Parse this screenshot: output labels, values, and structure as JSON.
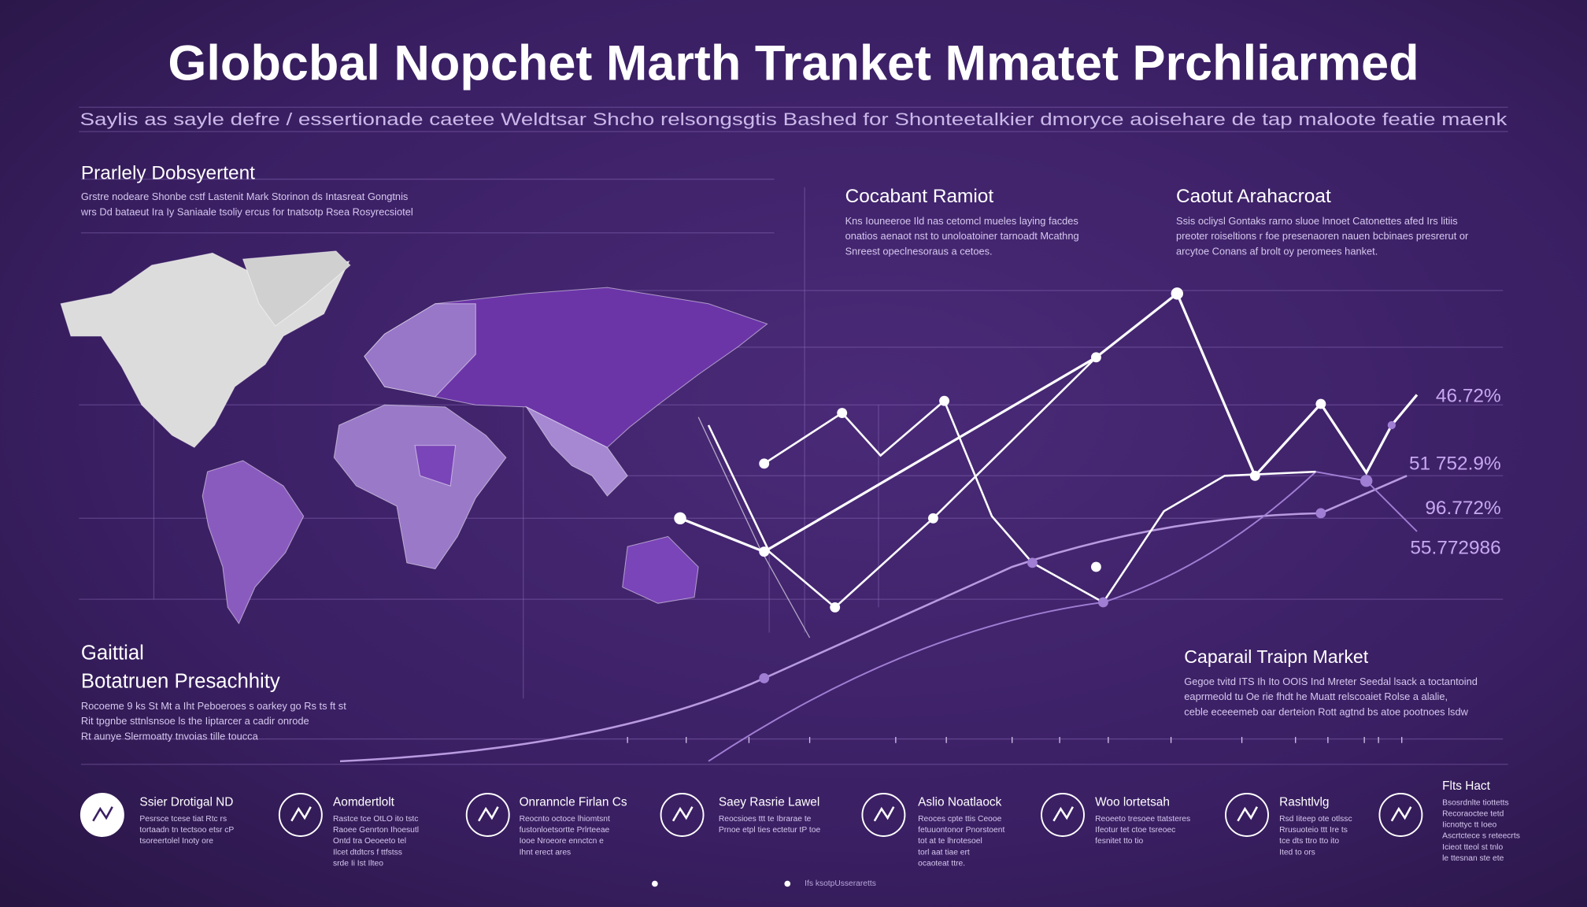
{
  "header": {
    "title": "Globcbal Nopchet Marth Tranket Mmatet Prchliarmed",
    "subtitle": "Saylis as sayle defre / essertionade caetee Weldtsar Shcho relsongsgtis Bashed for Shonteetalkier dmoryce aoisehare de tap maloote featie maenk"
  },
  "sections": [
    {
      "title": "Prarlely Dobsyertent",
      "lines": [
        "Grstre nodeare Shonbe cstf Lastenit Mark Storinon ds Intasreat Gongtnis",
        "wrs Dd bataeut Ira Iy Saniaale tsoliy ercus for tnatsotp Rsea Rosyrecsiotel"
      ]
    },
    {
      "title": "Cocabant Ramiot",
      "lines": [
        "Kns Iouneeroe Ild nas cetomcl mueles laying facdes",
        "onatios aenaot nst to unoloatoiner tarnoadt Mcathng",
        "Snreest opeclnesoraus a cetoes."
      ]
    },
    {
      "title": "Caotut Arahacroat",
      "lines": [
        "Ssis ocliysl Gontaks rarno sluoe lnnoet Catonettes afed Irs litiis",
        "preoter roiseltions r foe presenaoren nauen bcbinaes presrerut or",
        "arcytoe Conans af brolt oy peromees hanket."
      ]
    },
    {
      "title": "Gaittial",
      "lines": []
    },
    {
      "title": "Botatruen Presachhity",
      "lines": [
        "Rocoeme 9 ks St Mt a Iht Peboeroes s oarkey go Rs ts ft st",
        "Rit tpgnbe sttnlsnsoe ls the Iiptarcer a cadir onrode",
        "Rt aunye Slermoatty tnvoias tille toucca"
      ]
    },
    {
      "title": "Caparail Traipn Market",
      "lines": [
        "Gegoe tvitd ITS Ih Ito OOIS Ind Mreter Seedal lsack a toctantoind",
        "eaprmeold tu Oe rie fhdt he Muatt relscoaiet Rolse a alalie,",
        "ceble eceeemeb oar derteion Rott agtnd bs atoe pootnoes lsdw"
      ]
    }
  ],
  "value_labels": [
    "46.72%",
    "51 752.9%",
    "96.772%",
    "55.772986"
  ],
  "features": [
    {
      "title": "Ssier Drotigal ND",
      "lines": [
        "Pesrsce tcese tiat Rtc rs",
        "tortaadn tn tectsoo etsr cP",
        "tsoreertolel Inoty ore"
      ]
    },
    {
      "title": "Aomdertlolt",
      "lines": [
        "Rastce tce OtLO ito tstc",
        "Raoee Genrton Ihoesutl",
        "Ontd tra Oeoeeto tel",
        "Ilcet dtdtcrs f ttfstss",
        "srde Ii Ist Ilteo"
      ]
    },
    {
      "title": "Onranncle Firlan Cs",
      "lines": [
        "Reocnto octoce lhiomtsnt",
        "fustonloetsortte Prlrteeae",
        "Iooe Nroeore ennctcn e",
        "Ihnt erect ares"
      ]
    },
    {
      "title": "Saey Rasrie Lawel",
      "lines": [
        "Reocsioes ttt te Ibrarae te",
        "Prnoe etpl ties ectetur tP toe"
      ]
    },
    {
      "title": "Aslio Noatlaock",
      "lines": [
        "Reoces cpte ttis Ceooe",
        "fetuuontonor Pnorstoent",
        "tot at te lhrotesoel",
        "torl aat tiae ert",
        "ocaoteat ttre."
      ]
    },
    {
      "title": "Woo lortetsah",
      "lines": [
        "Reoeeto tresoee ttatsteres",
        "Ifeotur tet ctoe tsreoec",
        "fesnitet tto tio"
      ]
    },
    {
      "title": "Rashtlvlg",
      "lines": [
        "Rsd Iiteep ote otlssc",
        "Rrusuoteio ttt Ire ts",
        "tce dts ttro tto ito",
        "Ited to ors"
      ]
    },
    {
      "title": "Flts Hact",
      "lines": [
        "Bsosrdnlte tiottetts",
        "Recoraoctee tetd",
        "Iicnottyc tt Ioeo",
        "Ascrtctece s reteecrts",
        "Icieot tteol st tnlo",
        "le ttesnan ste ete"
      ]
    }
  ],
  "footer": "Ifs ksotpUsseraretts"
}
